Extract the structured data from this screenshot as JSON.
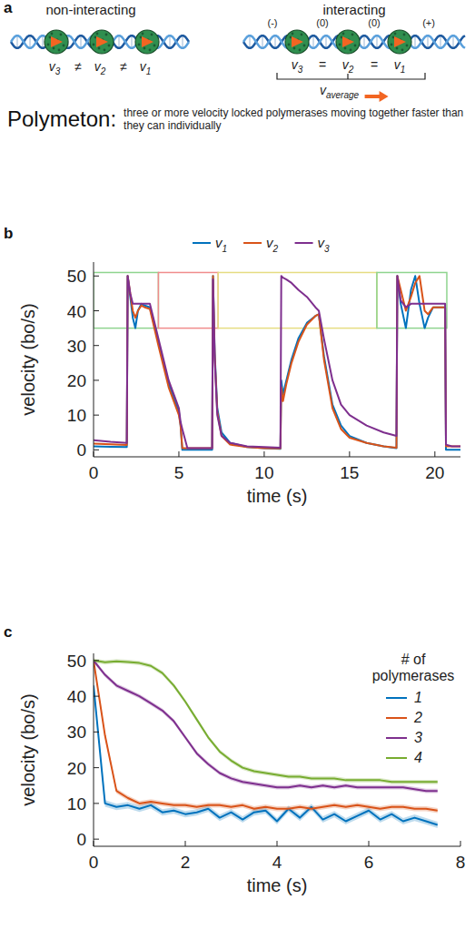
{
  "panel_letters": [
    "a",
    "b",
    "c"
  ],
  "diagram": {
    "left_title": "non-interacting",
    "right_title": "interacting",
    "left_labels": [
      "v3",
      "≠",
      "v2",
      "≠",
      "v1"
    ],
    "right_signs": [
      "(-)",
      "(0)",
      "(0)",
      "(+)"
    ],
    "right_labels": [
      "v3",
      "=",
      "v2",
      "=",
      "v1"
    ],
    "average_label": "vaverage",
    "term": "Polymeton:",
    "definition": "three or more velocity locked polymerases moving together faster than they can individually"
  },
  "chart_data": [
    {
      "type": "line",
      "x_label": "time (s)",
      "y_label": "velocity (bo/s)",
      "legend": "top",
      "x": [
        0,
        1,
        1.95,
        2.0,
        2.15,
        2.3,
        2.45,
        2.6,
        2.8,
        3.0,
        3.3,
        3.8,
        4.4,
        5.0,
        5.1,
        5.2,
        5.5,
        6.0,
        6.95,
        7.0,
        7.1,
        7.25,
        7.5,
        8.0,
        9.0,
        10.0,
        10.95,
        11.0,
        11.1,
        11.3,
        11.6,
        12.0,
        12.5,
        13.0,
        13.2,
        13.5,
        14.0,
        14.5,
        15.0,
        16.0,
        17.0,
        17.75,
        17.8,
        18.0,
        18.3,
        18.6,
        18.85,
        19.1,
        19.4,
        19.6,
        19.9,
        20.3,
        20.6,
        20.65,
        21.0,
        21.5
      ],
      "series": [
        {
          "name": "v1",
          "color": "#0072bd",
          "values": [
            1.0,
            0.9,
            0.8,
            50,
            44,
            38,
            35,
            40,
            42,
            41.5,
            41,
            31,
            19,
            11,
            7,
            0,
            0,
            0,
            0,
            50,
            28,
            12,
            5,
            2,
            0.8,
            0.5,
            0.3,
            20,
            16,
            20,
            26,
            32,
            36.5,
            38.5,
            39,
            27,
            13,
            7,
            4,
            2,
            1,
            0.5,
            50,
            42,
            35,
            46,
            50,
            42,
            35,
            38,
            41,
            41,
            41,
            0,
            0,
            0
          ]
        },
        {
          "name": "v2",
          "color": "#d95319",
          "values": [
            1.8,
            1.6,
            1.4,
            50,
            45,
            40,
            38,
            40,
            41.5,
            41,
            40.5,
            30,
            18,
            10,
            7,
            0.5,
            0.5,
            0.5,
            0.5,
            50,
            27,
            11,
            4,
            1.5,
            0.8,
            0.5,
            0.4,
            18,
            14,
            19,
            25,
            31,
            36,
            38.5,
            39,
            26,
            12,
            6,
            3.5,
            2,
            1,
            0.6,
            50,
            46,
            40,
            44,
            48,
            50,
            40,
            39,
            41,
            41,
            41,
            1,
            1,
            1
          ]
        },
        {
          "name": "v3",
          "color": "#7e2f8e",
          "values": [
            2.8,
            2.3,
            2.0,
            50,
            45,
            42,
            42,
            42,
            42,
            42,
            42,
            32,
            20,
            12,
            8,
            6,
            0.5,
            0.5,
            0.5,
            49,
            26,
            10,
            4,
            2,
            1,
            0.8,
            0.6,
            50,
            49.5,
            49,
            48,
            46,
            44,
            41,
            40,
            32,
            20,
            13,
            10,
            7,
            5,
            4,
            50,
            43,
            41,
            42,
            42,
            42,
            42,
            42,
            42,
            42,
            42,
            1.5,
            1,
            1
          ]
        }
      ],
      "regions": [
        {
          "x": [
            0,
            3.8
          ],
          "y": [
            35,
            51
          ],
          "color": "#8fd48f"
        },
        {
          "x": [
            3.8,
            7.3
          ],
          "y": [
            35,
            51
          ],
          "color": "#f08c8c"
        },
        {
          "x": [
            7.3,
            16.6
          ],
          "y": [
            35,
            51
          ],
          "color": "#e6dc82"
        },
        {
          "x": [
            16.6,
            20.7
          ],
          "y": [
            35,
            51
          ],
          "color": "#8fd48f"
        }
      ],
      "xlim": [
        0,
        21.5
      ],
      "ylim": [
        -2,
        54
      ],
      "xticks": [
        0,
        5,
        10,
        15,
        20
      ],
      "yticks": [
        0,
        10,
        20,
        30,
        40,
        50
      ]
    },
    {
      "type": "line",
      "x_label": "time (s)",
      "y_label": "velocity (bo/s)",
      "legend": "upper right",
      "legend_title": "# of polymerases",
      "x": [
        0,
        0.25,
        0.5,
        0.75,
        1.0,
        1.25,
        1.5,
        1.75,
        2.0,
        2.25,
        2.5,
        2.75,
        3.0,
        3.25,
        3.5,
        3.75,
        4.0,
        4.25,
        4.5,
        4.75,
        5.0,
        5.25,
        5.5,
        5.75,
        6.0,
        6.25,
        6.5,
        6.75,
        7.0,
        7.25,
        7.5
      ],
      "series": [
        {
          "name": "1",
          "color": "#0072bd",
          "error": 0.9,
          "values": [
            43,
            10,
            9,
            9.5,
            8.5,
            9.5,
            7.5,
            8,
            7,
            7.5,
            8.5,
            6,
            7.5,
            5.5,
            7.5,
            8,
            5,
            8.5,
            6,
            9,
            5.5,
            7,
            5,
            6.5,
            8,
            5.5,
            7,
            5,
            6,
            5,
            4
          ]
        },
        {
          "name": "2",
          "color": "#d95319",
          "error": 0.7,
          "values": [
            50,
            29,
            13.5,
            11.5,
            10,
            10.5,
            10,
            9.5,
            9.5,
            9,
            9.5,
            9.5,
            9,
            9.5,
            8.5,
            9,
            8.5,
            8.5,
            9,
            8.5,
            9,
            9.5,
            9,
            9.5,
            9,
            8.5,
            9,
            9,
            8.5,
            8.5,
            8
          ]
        },
        {
          "name": "3",
          "color": "#7e2f8e",
          "error": 0.6,
          "values": [
            50,
            46,
            43,
            41.5,
            40,
            38,
            36,
            33,
            28.5,
            24,
            21,
            18.5,
            17,
            16,
            15.5,
            15,
            14.5,
            14.5,
            15,
            14.5,
            15,
            14.5,
            15,
            14.5,
            14.5,
            14.5,
            14.5,
            14.5,
            14,
            13.5,
            13.5
          ]
        },
        {
          "name": "4",
          "color": "#77ac30",
          "error": 0.6,
          "values": [
            50,
            49.5,
            49.8,
            49.6,
            49.3,
            48.5,
            46.5,
            43,
            38.5,
            33.5,
            28.5,
            24.5,
            22,
            20,
            19,
            18.5,
            18,
            17.5,
            17.5,
            17,
            17,
            17,
            16.5,
            16.5,
            16.5,
            16.5,
            16,
            16,
            16,
            16,
            16
          ]
        }
      ],
      "xlim": [
        0,
        8
      ],
      "ylim": [
        -2,
        52
      ],
      "xticks": [
        0,
        2,
        4,
        6,
        8
      ],
      "yticks": [
        0,
        10,
        20,
        30,
        40,
        50
      ]
    }
  ]
}
